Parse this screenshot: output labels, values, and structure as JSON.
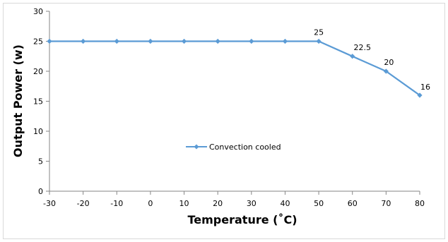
{
  "chart_data": {
    "type": "line",
    "title": "",
    "xlabel": "Temperature (˚C)",
    "ylabel": "Output Power (w)",
    "x": [
      -30,
      -20,
      -10,
      0,
      10,
      20,
      30,
      40,
      50,
      60,
      70,
      80
    ],
    "xlim": [
      -30,
      80
    ],
    "ylim": [
      0,
      30
    ],
    "xticks": [
      -30,
      -20,
      -10,
      0,
      10,
      20,
      30,
      40,
      50,
      60,
      70,
      80
    ],
    "yticks": [
      0,
      5,
      10,
      15,
      20,
      25,
      30
    ],
    "grid": false,
    "legend": "center-left",
    "series": [
      {
        "name": "Convection cooled",
        "color": "#5b9bd5",
        "marker": "diamond",
        "values": [
          25,
          25,
          25,
          25,
          25,
          25,
          25,
          25,
          25,
          22.5,
          20,
          16
        ]
      }
    ],
    "data_labels": [
      {
        "x": 50,
        "text": "25"
      },
      {
        "x": 60,
        "text": "22.5"
      },
      {
        "x": 70,
        "text": "20"
      },
      {
        "x": 80,
        "text": "16"
      }
    ]
  }
}
